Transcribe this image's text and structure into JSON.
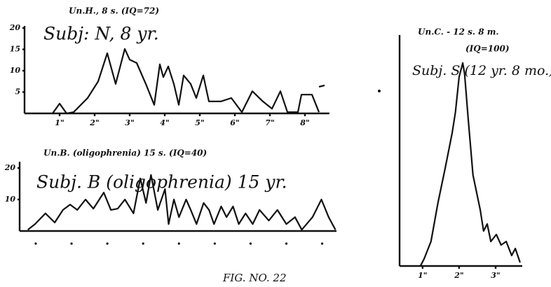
{
  "caption": "FIG. NO. 22",
  "chart_data": [
    {
      "type": "line",
      "subtitle": "Un.H., 8 s. (IQ=72)",
      "title": "Subj: N, 8 yr.",
      "color": "#111111",
      "xlim": [
        0,
        8.7
      ],
      "ylim": [
        0,
        20.5
      ],
      "xticks": [
        {
          "value": 1,
          "label": "1\""
        },
        {
          "value": 2,
          "label": "2\""
        },
        {
          "value": 3,
          "label": "3\""
        },
        {
          "value": 4,
          "label": "4\""
        },
        {
          "value": 5,
          "label": "5\""
        },
        {
          "value": 6,
          "label": "6\""
        },
        {
          "value": 7,
          "label": "7\""
        },
        {
          "value": 8,
          "label": "8\""
        }
      ],
      "yticks": [
        5,
        10,
        15,
        20
      ],
      "x": [
        0.8,
        1.0,
        1.2,
        1.4,
        1.8,
        2.1,
        2.36,
        2.6,
        2.86,
        3.0,
        3.2,
        3.46,
        3.7,
        3.86,
        3.96,
        4.1,
        4.26,
        4.4,
        4.54,
        4.74,
        4.9,
        5.1,
        5.26,
        5.6,
        5.9,
        6.2,
        6.5,
        6.8,
        7.06,
        7.3,
        7.5,
        7.8,
        7.9,
        8.2,
        8.4
      ],
      "values": [
        0,
        2.3,
        0,
        0.3,
        3.6,
        7.5,
        14.1,
        6.9,
        15.1,
        12.6,
        11.8,
        6.9,
        2.0,
        11.5,
        8.5,
        11.0,
        6.9,
        2.0,
        8.9,
        6.9,
        3.6,
        8.9,
        2.8,
        2.8,
        3.6,
        0.3,
        5.2,
        2.8,
        1.1,
        5.2,
        0.3,
        0.3,
        4.4,
        4.4,
        0.3
      ]
    },
    {
      "type": "line",
      "subtitle": "Un.B. (oligophrenia) 15 s. (IQ=40)",
      "title": "Subj. B (oligophrenia) 15 yr.",
      "color": "#111111",
      "xlim": [
        0.55,
        9.4
      ],
      "ylim": [
        0,
        22
      ],
      "xticks": [
        1,
        2,
        3,
        4,
        5,
        6,
        7,
        8,
        9
      ],
      "yticks": [
        10,
        20
      ],
      "x": [
        0.78,
        0.98,
        1.27,
        1.53,
        1.76,
        1.96,
        2.16,
        2.39,
        2.61,
        2.9,
        3.1,
        3.29,
        3.49,
        3.73,
        3.92,
        4.08,
        4.22,
        4.41,
        4.61,
        4.71,
        4.86,
        5.0,
        5.2,
        5.33,
        5.49,
        5.69,
        5.84,
        5.98,
        6.18,
        6.33,
        6.51,
        6.67,
        6.86,
        7.06,
        7.25,
        7.51,
        7.75,
        8.0,
        8.24,
        8.43,
        8.73,
        8.98,
        9.18,
        9.37
      ],
      "values": [
        0.4,
        2.2,
        5.6,
        2.7,
        6.7,
        8.4,
        6.7,
        10.0,
        7.1,
        12.2,
        6.7,
        7.1,
        10.0,
        5.6,
        16.7,
        8.9,
        17.8,
        6.7,
        13.3,
        2.2,
        10.0,
        4.4,
        10.0,
        6.7,
        2.2,
        8.9,
        6.7,
        2.2,
        7.8,
        4.4,
        7.8,
        2.2,
        5.6,
        2.2,
        6.7,
        3.3,
        6.7,
        2.2,
        4.4,
        0.4,
        4.4,
        10.0,
        4.4,
        0.4
      ]
    },
    {
      "type": "line",
      "subtitle": "Un.C. - 12 s. 8 m.",
      "annotation": "(IQ=100)",
      "title": "Subj. S (12 yr. 8 mo.)",
      "color": "#111111",
      "xlim": [
        0.37,
        3.73
      ],
      "ylim": [
        0,
        33
      ],
      "xticks": [
        {
          "value": 1,
          "label": "1\""
        },
        {
          "value": 2,
          "label": "2\""
        },
        {
          "value": 3,
          "label": "3\""
        }
      ],
      "x": [
        0.94,
        1.04,
        1.23,
        1.42,
        1.62,
        1.81,
        1.9,
        2.0,
        2.1,
        2.15,
        2.25,
        2.38,
        2.58,
        2.67,
        2.77,
        2.87,
        3.02,
        3.15,
        3.29,
        3.44,
        3.54,
        3.67
      ],
      "values": [
        0,
        1.0,
        3.5,
        9.0,
        14.0,
        19.0,
        22.0,
        27.0,
        29.0,
        27.5,
        21.0,
        13.0,
        8.0,
        5.0,
        6.0,
        3.5,
        4.5,
        3.0,
        3.5,
        1.5,
        2.5,
        0.5
      ]
    }
  ]
}
